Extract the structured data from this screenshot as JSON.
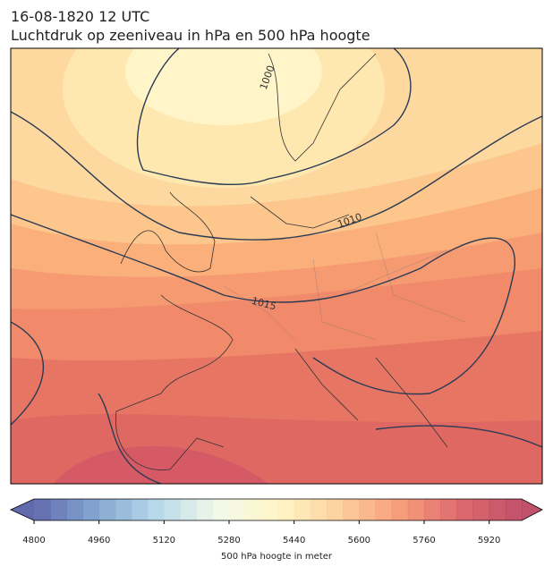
{
  "header": {
    "title": "16-08-1820 12 UTC",
    "subtitle": "Luchtdruk op zeeniveau in hPa en 500 hPa hoogte"
  },
  "map": {
    "contour_labels": [
      "1000",
      "1010",
      "1015"
    ]
  },
  "colorbar": {
    "lim": [
      4800,
      6000
    ],
    "step": 40,
    "ticks": [
      4800,
      4960,
      5120,
      5280,
      5440,
      5600,
      5760,
      5920
    ],
    "label": "500 hPa hoogte in meter"
  }
}
